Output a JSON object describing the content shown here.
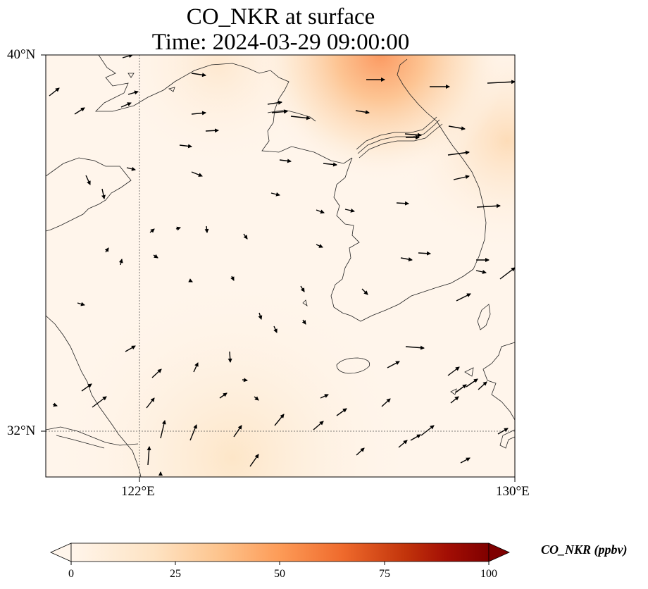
{
  "title": {
    "line1": "CO_NKR at surface",
    "line2": "Time: 2024-03-29 09:00:00"
  },
  "map": {
    "lat_labels": [
      "40°N",
      "32°N"
    ],
    "lon_labels": [
      "122°E",
      "130°E"
    ],
    "gridlines": "dotted",
    "field_variable": "CO_NKR",
    "overlay": "wind vectors"
  },
  "colorbar": {
    "title": "CO_NKR (ppbv)",
    "ticks": [
      "0",
      "25",
      "50",
      "75",
      "100"
    ],
    "range": [
      0,
      100
    ],
    "extend": "both",
    "colormap": [
      "#fff5eb",
      "#fdd0a2",
      "#fd8d3c",
      "#d94801",
      "#a50000",
      "#7f0000"
    ]
  }
}
